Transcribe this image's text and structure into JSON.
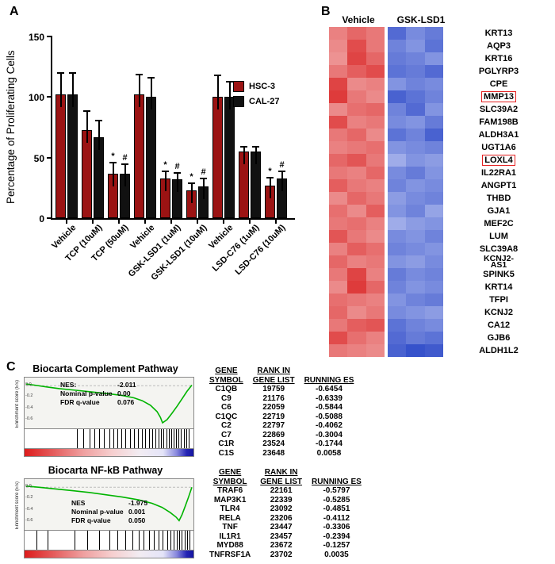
{
  "labels": {
    "a": "A",
    "b": "B",
    "c": "C"
  },
  "chart_data": [
    {
      "type": "bar",
      "panel": "A",
      "ylabel": "Percentage of Proliferating Cells",
      "ylim": [
        0,
        150
      ],
      "yticks": [
        0,
        50,
        100,
        150
      ],
      "series": [
        "HSC-3",
        "CAL-27"
      ],
      "series_colors": [
        "#9b1313",
        "#111111"
      ],
      "groups": [
        {
          "label": "Vehicle",
          "values": [
            102,
            102
          ],
          "errors": [
            17,
            17
          ],
          "sig": [
            "",
            ""
          ]
        },
        {
          "label": "TCP (10uM)",
          "values": [
            73,
            67
          ],
          "errors": [
            15,
            13
          ],
          "sig": [
            "",
            ""
          ]
        },
        {
          "label": "TCP (50uM)",
          "values": [
            37,
            37
          ],
          "errors": [
            8,
            7
          ],
          "sig": [
            "*",
            "#"
          ]
        },
        {
          "label": "Vehicle",
          "values": [
            102,
            100
          ],
          "errors": [
            16,
            15
          ],
          "sig": [
            "",
            ""
          ]
        },
        {
          "label": "GSK-LSD1 (1uM)",
          "values": [
            33,
            32
          ],
          "errors": [
            5,
            5
          ],
          "sig": [
            "*",
            "#"
          ]
        },
        {
          "label": "GSK-LSD1 (10uM)",
          "values": [
            23,
            26
          ],
          "errors": [
            5,
            6
          ],
          "sig": [
            "*",
            "#"
          ]
        },
        {
          "label": "Vehicle",
          "values": [
            100,
            100
          ],
          "errors": [
            17,
            12
          ],
          "sig": [
            "",
            ""
          ]
        },
        {
          "label": "LSD-C76 (1uM)",
          "values": [
            55,
            55
          ],
          "errors": [
            3,
            3
          ],
          "sig": [
            "",
            ""
          ]
        },
        {
          "label": "LSD-C76 (10uM)",
          "values": [
            27,
            33
          ],
          "errors": [
            6,
            5
          ],
          "sig": [
            "*",
            "#"
          ]
        }
      ]
    },
    {
      "type": "heatmap",
      "panel": "B",
      "col_groups": [
        "Vehicle",
        "GSK-LSD1"
      ],
      "highlighted_genes": [
        "MMP13",
        "LOXL4"
      ],
      "rows": [
        {
          "gene": "KRT13",
          "vehicle": [
            0.55,
            0.7,
            0.6
          ],
          "gsk": [
            0.75,
            0.55,
            0.65
          ]
        },
        {
          "gene": "AQP3",
          "vehicle": [
            0.5,
            0.85,
            0.6
          ],
          "gsk": [
            0.6,
            0.5,
            0.7
          ]
        },
        {
          "gene": "KRT16",
          "vehicle": [
            0.45,
            0.9,
            0.7
          ],
          "gsk": [
            0.65,
            0.6,
            0.5
          ]
        },
        {
          "gene": "PGLYRP3",
          "vehicle": [
            0.6,
            0.75,
            0.85
          ],
          "gsk": [
            0.7,
            0.65,
            0.75
          ]
        },
        {
          "gene": "CPE",
          "vehicle": [
            0.9,
            0.5,
            0.55
          ],
          "gsk": [
            0.5,
            0.6,
            0.55
          ]
        },
        {
          "gene": "MMP13",
          "vehicle": [
            0.95,
            0.6,
            0.5
          ],
          "gsk": [
            0.8,
            0.7,
            0.6
          ]
        },
        {
          "gene": "SLC39A2",
          "vehicle": [
            0.5,
            0.65,
            0.7
          ],
          "gsk": [
            0.6,
            0.75,
            0.5
          ]
        },
        {
          "gene": "FAM198B",
          "vehicle": [
            0.85,
            0.55,
            0.6
          ],
          "gsk": [
            0.55,
            0.5,
            0.65
          ]
        },
        {
          "gene": "ALDH3A1",
          "vehicle": [
            0.6,
            0.7,
            0.5
          ],
          "gsk": [
            0.7,
            0.6,
            0.8
          ]
        },
        {
          "gene": "UGT1A6",
          "vehicle": [
            0.55,
            0.6,
            0.65
          ],
          "gsk": [
            0.5,
            0.55,
            0.6
          ]
        },
        {
          "gene": "LOXL4",
          "vehicle": [
            0.7,
            0.8,
            0.6
          ],
          "gsk": [
            0.35,
            0.5,
            0.45
          ]
        },
        {
          "gene": "IL22RA1",
          "vehicle": [
            0.6,
            0.55,
            0.7
          ],
          "gsk": [
            0.55,
            0.65,
            0.5
          ]
        },
        {
          "gene": "ANGPT1",
          "vehicle": [
            0.75,
            0.6,
            0.55
          ],
          "gsk": [
            0.6,
            0.5,
            0.55
          ]
        },
        {
          "gene": "THBD",
          "vehicle": [
            0.5,
            0.7,
            0.6
          ],
          "gsk": [
            0.45,
            0.55,
            0.6
          ]
        },
        {
          "gene": "GJA1",
          "vehicle": [
            0.65,
            0.5,
            0.75
          ],
          "gsk": [
            0.5,
            0.6,
            0.4
          ]
        },
        {
          "gene": "MEF2C",
          "vehicle": [
            0.6,
            0.65,
            0.55
          ],
          "gsk": [
            0.35,
            0.45,
            0.5
          ]
        },
        {
          "gene": "LUM",
          "vehicle": [
            0.8,
            0.6,
            0.5
          ],
          "gsk": [
            0.55,
            0.5,
            0.6
          ]
        },
        {
          "gene": "SLC39A8",
          "vehicle": [
            0.55,
            0.75,
            0.65
          ],
          "gsk": [
            0.6,
            0.55,
            0.5
          ]
        },
        {
          "gene": "KCNJ2-\nAS1",
          "vehicle": [
            0.7,
            0.55,
            0.6
          ],
          "gsk": [
            0.5,
            0.45,
            0.55
          ]
        },
        {
          "gene": "SPINK5",
          "vehicle": [
            0.6,
            0.9,
            0.55
          ],
          "gsk": [
            0.65,
            0.55,
            0.6
          ]
        },
        {
          "gene": "KRT14",
          "vehicle": [
            0.5,
            0.95,
            0.7
          ],
          "gsk": [
            0.6,
            0.5,
            0.55
          ]
        },
        {
          "gene": "TFPI",
          "vehicle": [
            0.65,
            0.6,
            0.55
          ],
          "gsk": [
            0.5,
            0.6,
            0.65
          ]
        },
        {
          "gene": "KCNJ2",
          "vehicle": [
            0.7,
            0.5,
            0.6
          ],
          "gsk": [
            0.55,
            0.5,
            0.45
          ]
        },
        {
          "gene": "CA12",
          "vehicle": [
            0.6,
            0.75,
            0.8
          ],
          "gsk": [
            0.7,
            0.6,
            0.55
          ]
        },
        {
          "gene": "GJB6",
          "vehicle": [
            0.85,
            0.65,
            0.55
          ],
          "gsk": [
            0.75,
            0.65,
            0.7
          ]
        },
        {
          "gene": "ALDH1L2",
          "vehicle": [
            0.6,
            0.55,
            0.5
          ],
          "gsk": [
            0.8,
            0.9,
            0.85
          ]
        }
      ]
    },
    {
      "type": "line",
      "panel": "C",
      "title": "Biocarta Complement Pathway",
      "ylabel": "Enrichment score (ES)",
      "yticks": [
        "0.0",
        "-0.2",
        "-0.4",
        "-0.6"
      ],
      "stats": [
        [
          "NES:",
          "-2.011"
        ],
        [
          "Nominal p-value",
          "0.00"
        ],
        [
          "FDR q-value",
          "0.076"
        ]
      ],
      "curve": [
        [
          0,
          0.03
        ],
        [
          0.05,
          0.01
        ],
        [
          0.12,
          -0.02
        ],
        [
          0.2,
          -0.05
        ],
        [
          0.3,
          -0.08
        ],
        [
          0.4,
          -0.11
        ],
        [
          0.5,
          -0.14
        ],
        [
          0.58,
          -0.17
        ],
        [
          0.65,
          -0.21
        ],
        [
          0.7,
          -0.26
        ],
        [
          0.75,
          -0.34
        ],
        [
          0.79,
          -0.45
        ],
        [
          0.81,
          -0.55
        ],
        [
          0.823,
          -0.645
        ],
        [
          0.85,
          -0.59
        ],
        [
          0.88,
          -0.48
        ],
        [
          0.91,
          -0.36
        ],
        [
          0.94,
          -0.23
        ],
        [
          0.97,
          -0.1
        ],
        [
          1,
          0.01
        ]
      ],
      "hits": [
        0.305,
        0.345,
        0.385,
        0.41,
        0.44,
        0.47,
        0.5,
        0.525,
        0.55,
        0.575,
        0.6,
        0.625,
        0.65,
        0.675,
        0.7,
        0.72,
        0.74,
        0.76,
        0.78,
        0.8,
        0.815,
        0.83,
        0.845,
        0.86,
        0.875,
        0.89,
        0.905,
        0.92,
        0.935,
        0.95,
        0.965,
        0.98
      ],
      "table": {
        "headers": [
          [
            "GENE",
            "SYMBOL"
          ],
          [
            "RANK IN",
            "GENE LIST"
          ],
          [
            "RUNNING ES",
            ""
          ]
        ],
        "rows": [
          [
            "C1QB",
            "19759",
            "-0.6454"
          ],
          [
            "C9",
            "21176",
            "-0.6339"
          ],
          [
            "C6",
            "22059",
            "-0.5844"
          ],
          [
            "C1QC",
            "22719",
            "-0.5088"
          ],
          [
            "C2",
            "22797",
            "-0.4062"
          ],
          [
            "C7",
            "22869",
            "-0.3004"
          ],
          [
            "C1R",
            "23524",
            "-0.1744"
          ],
          [
            "C1S",
            "23648",
            "0.0058"
          ]
        ]
      }
    },
    {
      "type": "line",
      "panel": "C",
      "title": "Biocarta NF-kB Pathway",
      "ylabel": "Enrichment score (ES)",
      "yticks": [
        "0.0",
        "-0.2",
        "-0.4",
        "-0.6"
      ],
      "stats": [
        [
          "NES",
          "-1.975"
        ],
        [
          "Nominal p-value",
          "0.001"
        ],
        [
          "FDR q-value",
          "0.050"
        ]
      ],
      "curve": [
        [
          0,
          0.02
        ],
        [
          0.08,
          0
        ],
        [
          0.18,
          -0.03
        ],
        [
          0.28,
          -0.06
        ],
        [
          0.38,
          -0.09
        ],
        [
          0.48,
          -0.13
        ],
        [
          0.58,
          -0.17
        ],
        [
          0.68,
          -0.22
        ],
        [
          0.76,
          -0.28
        ],
        [
          0.82,
          -0.35
        ],
        [
          0.87,
          -0.44
        ],
        [
          0.905,
          -0.52
        ],
        [
          0.923,
          -0.58
        ],
        [
          0.94,
          -0.48
        ],
        [
          0.96,
          -0.33
        ],
        [
          0.98,
          -0.17
        ],
        [
          1,
          0
        ]
      ],
      "hits": [
        0.06,
        0.13,
        0.29,
        0.37,
        0.44,
        0.5,
        0.55,
        0.6,
        0.64,
        0.68,
        0.71,
        0.74,
        0.77,
        0.8,
        0.825,
        0.85,
        0.87,
        0.89,
        0.91,
        0.925,
        0.94,
        0.955,
        0.97,
        0.985
      ],
      "table": {
        "headers": [
          [
            "GENE",
            "SYMBOL"
          ],
          [
            "RANK IN",
            "GENE LIST"
          ],
          [
            "RUNNING ES",
            ""
          ]
        ],
        "rows": [
          [
            "TRAF6",
            "22161",
            "-0.5797"
          ],
          [
            "MAP3K1",
            "22339",
            "-0.5285"
          ],
          [
            "TLR4",
            "23092",
            "-0.4851"
          ],
          [
            "RELA",
            "23206",
            "-0.4112"
          ],
          [
            "TNF",
            "23447",
            "-0.3306"
          ],
          [
            "IL1R1",
            "23457",
            "-0.2394"
          ],
          [
            "MYD88",
            "23672",
            "-0.1257"
          ],
          [
            "TNFRSF1A",
            "23702",
            "0.0035"
          ]
        ]
      }
    }
  ]
}
